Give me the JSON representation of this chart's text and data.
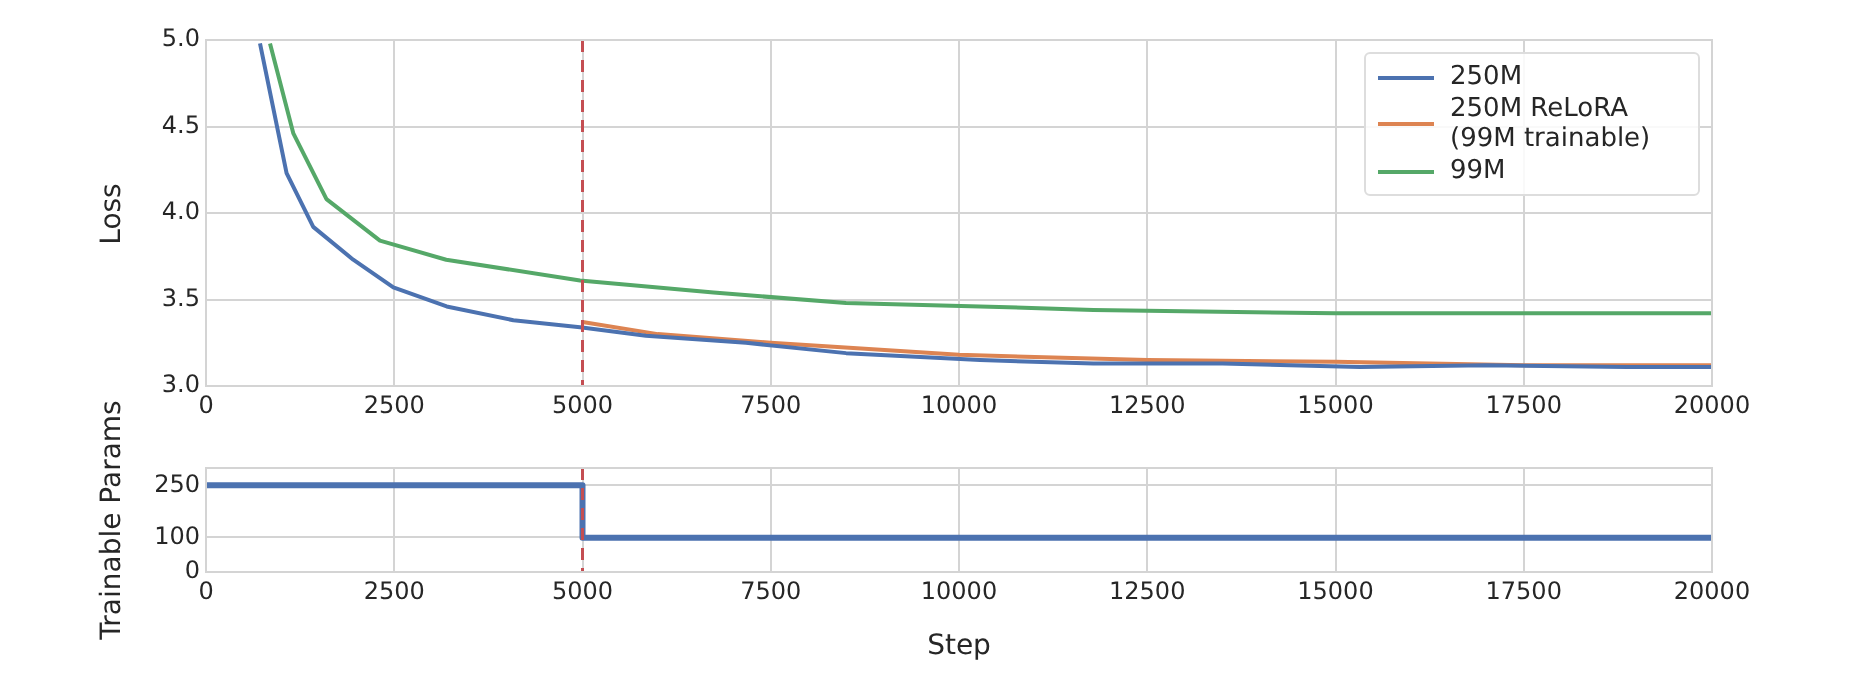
{
  "chart_data": [
    {
      "type": "line",
      "ylabel": "Loss",
      "xlim": [
        0,
        20000
      ],
      "xticks": [
        0,
        2500,
        5000,
        7500,
        10000,
        12500,
        15000,
        17500,
        20000
      ],
      "ylim": [
        3.0,
        5.0
      ],
      "yticks": [
        {
          "value": 3.0,
          "label": "3.0"
        },
        3.5,
        {
          "value": 4.0,
          "label": "4.0"
        },
        4.5,
        {
          "value": 5.0,
          "label": "5.0"
        }
      ],
      "grid": true,
      "legend": "top right",
      "series": [
        {
          "name": "250M",
          "color": "#4c72b0",
          "x": [
            717,
            1070,
            1424,
            1955,
            2488,
            3196,
            4082,
            4967,
            5843,
            7171,
            8500,
            10280,
            11785,
            13500,
            15325,
            17000,
            18860,
            20000
          ],
          "values": [
            4.98,
            4.23,
            3.92,
            3.73,
            3.57,
            3.46,
            3.38,
            3.34,
            3.29,
            3.25,
            3.19,
            3.15,
            3.13,
            3.13,
            3.11,
            3.12,
            3.11,
            3.11
          ]
        },
        {
          "name": "250M ReLoRA (99M trainable)",
          "color": "#dd8452",
          "x": [
            5000,
            6000,
            7500,
            10000,
            12500,
            15000,
            17500,
            20000
          ],
          "values": [
            3.37,
            3.3,
            3.25,
            3.18,
            3.15,
            3.14,
            3.12,
            3.12
          ]
        },
        {
          "name": "99M",
          "color": "#55a868",
          "x": [
            850,
            1160,
            1600,
            2310,
            3190,
            4967,
            6740,
            8500,
            10280,
            11785,
            15000,
            17500,
            20000
          ],
          "values": [
            4.98,
            4.46,
            4.08,
            3.84,
            3.73,
            3.61,
            3.54,
            3.48,
            3.46,
            3.44,
            3.42,
            3.42,
            3.42
          ]
        }
      ],
      "ref_lines": [
        {
          "axis": "x",
          "value": 5000,
          "color": "#c44e52",
          "line_style": "dashed"
        }
      ]
    },
    {
      "type": "step",
      "xlabel": "Step",
      "ylabel": "Trainable Params",
      "xlim": [
        0,
        20000
      ],
      "xticks": [
        0,
        2500,
        5000,
        7500,
        10000,
        12500,
        15000,
        17500,
        20000
      ],
      "ylim": [
        0,
        300
      ],
      "yticks": [
        0,
        100,
        250
      ],
      "grid": true,
      "series": [
        {
          "color": "#4c72b0",
          "x": [
            0,
            5000,
            20000
          ],
          "values": [
            250,
            99,
            99
          ]
        }
      ],
      "ref_lines": [
        {
          "axis": "x",
          "value": 5000,
          "color": "#c44e52",
          "line_style": "dashed"
        }
      ]
    }
  ]
}
